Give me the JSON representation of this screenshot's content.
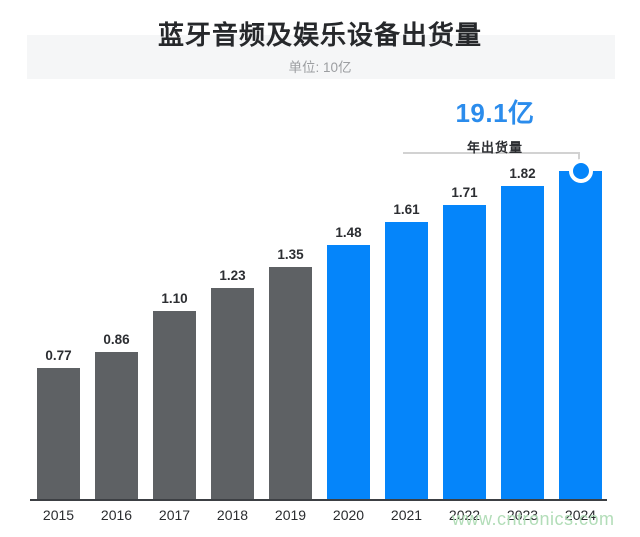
{
  "chart_data": {
    "type": "bar",
    "title": "蓝牙音频及娱乐设备出货量",
    "unit_note": "单位: 10亿",
    "xlabel": "",
    "ylabel": "",
    "categories": [
      "2015",
      "2016",
      "2017",
      "2018",
      "2019",
      "2020",
      "2021",
      "2022",
      "2023",
      "2024"
    ],
    "values": [
      0.77,
      0.86,
      1.1,
      1.23,
      1.35,
      1.48,
      1.61,
      1.71,
      1.82,
      1.91
    ],
    "bar_labels": [
      "0.77",
      "0.86",
      "1.10",
      "1.23",
      "1.35",
      "1.48",
      "1.61",
      "1.71",
      "1.82",
      ""
    ],
    "groups": [
      "past",
      "past",
      "past",
      "past",
      "past",
      "recent",
      "recent",
      "recent",
      "recent",
      "recent"
    ],
    "colors": {
      "past": "#5e6164",
      "recent": "#0585fa",
      "accent_text": "#2b8cec",
      "axis": "#3c3f43"
    },
    "ylim": [
      0,
      2.0
    ],
    "grid": false,
    "legend": false,
    "annotation": {
      "value": "19.1亿",
      "label": "年出货量",
      "target": "2024"
    }
  },
  "watermark": {
    "text": "www.cntronics.com"
  }
}
